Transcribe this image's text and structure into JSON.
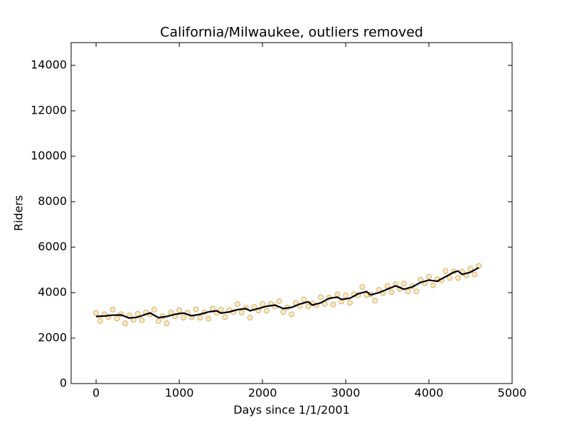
{
  "chart_data": {
    "type": "scatter",
    "title": "California/Milwaukee, outliers removed",
    "x_label": "Days since 1/1/2001",
    "y_label": "Riders",
    "xlim": [
      -300,
      5000
    ],
    "xticks": [
      0,
      1000,
      2000,
      3000,
      4000,
      5000
    ],
    "ylim": [
      0,
      15000
    ],
    "yticks": [
      0,
      2000,
      4000,
      6000,
      8000,
      10000,
      12000,
      14000
    ],
    "x": [
      0,
      50,
      100,
      150,
      200,
      250,
      300,
      350,
      400,
      450,
      500,
      550,
      600,
      650,
      700,
      750,
      800,
      850,
      900,
      950,
      1000,
      1050,
      1100,
      1150,
      1200,
      1250,
      1300,
      1350,
      1400,
      1450,
      1500,
      1550,
      1600,
      1650,
      1700,
      1750,
      1800,
      1850,
      1900,
      1950,
      2000,
      2050,
      2100,
      2150,
      2200,
      2250,
      2300,
      2350,
      2400,
      2450,
      2500,
      2550,
      2600,
      2650,
      2700,
      2750,
      2800,
      2850,
      2900,
      2950,
      3000,
      3050,
      3100,
      3150,
      3200,
      3250,
      3300,
      3350,
      3400,
      3450,
      3500,
      3550,
      3600,
      3650,
      3700,
      3750,
      3800,
      3850,
      3900,
      3950,
      4000,
      4050,
      4100,
      4150,
      4200,
      4250,
      4300,
      4350,
      4400,
      4450,
      4500,
      4550,
      4600
    ],
    "series": [
      {
        "type": "scatter",
        "color": "#ffa500",
        "edge_color": "#a06c00",
        "values": [
          3100,
          2760,
          3050,
          2930,
          3260,
          2865,
          3050,
          2650,
          3000,
          2810,
          3070,
          2785,
          3130,
          3040,
          3250,
          2750,
          2955,
          2650,
          3120,
          2960,
          3225,
          2900,
          3120,
          2920,
          3265,
          2900,
          3130,
          2850,
          3295,
          3110,
          3250,
          2925,
          3230,
          3140,
          3500,
          3125,
          3330,
          2900,
          3370,
          3210,
          3500,
          3200,
          3505,
          3390,
          3625,
          3150,
          3355,
          3050,
          3545,
          3410,
          3700,
          3400,
          3530,
          3440,
          3800,
          3500,
          3780,
          3475,
          3920,
          3610,
          3875,
          3550,
          3930,
          3890,
          4250,
          3900,
          3930,
          3650,
          4120,
          3985,
          4300,
          4025,
          4380,
          4165,
          4400,
          4050,
          4280,
          4050,
          4570,
          4410,
          4700,
          4325,
          4580,
          4540,
          4950,
          4650,
          4930,
          4650,
          4920,
          4760,
          5050,
          4800,
          5180
        ]
      },
      {
        "type": "line",
        "color": "#000000",
        "values": [
          2950,
          2960,
          2970,
          2990,
          3010,
          3015,
          3020,
          2950,
          2880,
          2900,
          2920,
          2985,
          3050,
          3100,
          3000,
          2900,
          2925,
          2950,
          3000,
          3050,
          3075,
          3100,
          3040,
          2980,
          3015,
          3050,
          3100,
          3150,
          3175,
          3200,
          3100,
          3125,
          3150,
          3200,
          3250,
          3275,
          3300,
          3200,
          3250,
          3300,
          3350,
          3400,
          3425,
          3450,
          3375,
          3300,
          3325,
          3350,
          3425,
          3500,
          3550,
          3600,
          3450,
          3500,
          3550,
          3650,
          3750,
          3775,
          3800,
          3700,
          3725,
          3750,
          3850,
          3950,
          4000,
          4050,
          3900,
          3950,
          4000,
          4075,
          4150,
          4225,
          4300,
          4225,
          4150,
          4200,
          4250,
          4350,
          4450,
          4500,
          4550,
          4525,
          4500,
          4600,
          4700,
          4800,
          4900,
          4950,
          4800,
          4850,
          4900,
          5000,
          5100
        ]
      }
    ]
  }
}
